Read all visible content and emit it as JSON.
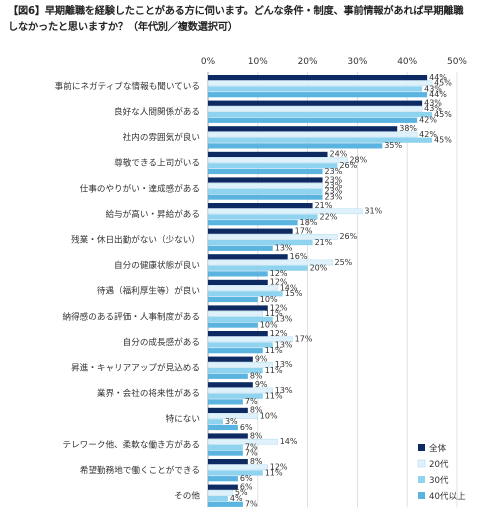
{
  "title_lines": [
    "【図6】早期離職を経験したことがある方に伺います。どんな条件・制度、事前情報があれば早期離職",
    "しなかったと思いますか？（年代別／複数選択可）"
  ],
  "chart_data": {
    "type": "bar",
    "orientation": "horizontal",
    "title": "【図6】早期離職を経験したことがある方に伺います。どんな条件・制度、事前情報があれば早期離職しなかったと思いますか？（年代別／複数選択可）",
    "xlim": [
      0,
      50
    ],
    "x_ticks": [
      "0%",
      "10%",
      "20%",
      "30%",
      "40%",
      "50%"
    ],
    "legend_position": "bottom-right",
    "categories": [
      "事前にネガティブな情報も聞いている",
      "良好な人間関係がある",
      "社内の雰囲気が良い",
      "尊敬できる上司がいる",
      "仕事のやりがい・達成感がある",
      "給与が高い・昇給がある",
      "残業・休日出勤がない（少ない）",
      "自分の健康状態が良い",
      "待遇（福利厚生等）が良い",
      "納得感のある評価・人事制度がある",
      "自分の成長感がある",
      "昇進・キャリアアップが見込める",
      "業界・会社の将来性がある",
      "特にない",
      "テレワーク他、柔軟な働き方がある",
      "希望勤務地で働くことができる",
      "その他"
    ],
    "series": [
      {
        "name": "全体",
        "color": "#0d2a63",
        "values": [
          44,
          43,
          38,
          24,
          23,
          21,
          17,
          16,
          12,
          12,
          12,
          9,
          9,
          8,
          8,
          8,
          6
        ]
      },
      {
        "name": "20代",
        "color": "#dff1fb",
        "values": [
          45,
          43,
          42,
          28,
          23,
          31,
          26,
          25,
          14,
          11,
          17,
          13,
          13,
          10,
          14,
          12,
          5
        ]
      },
      {
        "name": "30代",
        "color": "#8fd3ef",
        "values": [
          43,
          45,
          45,
          26,
          23,
          22,
          21,
          20,
          15,
          13,
          13,
          11,
          11,
          3,
          7,
          11,
          4
        ]
      },
      {
        "name": "40代以上",
        "color": "#5ab4df",
        "values": [
          44,
          42,
          35,
          23,
          23,
          18,
          13,
          12,
          10,
          10,
          11,
          8,
          7,
          6,
          7,
          6,
          7
        ]
      }
    ]
  }
}
